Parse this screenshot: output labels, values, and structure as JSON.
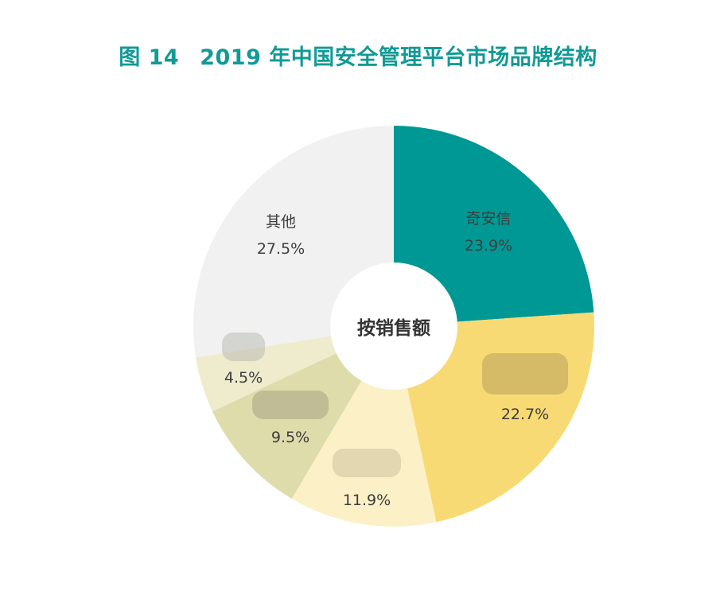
{
  "title": {
    "figure_number": "图 14",
    "text": "2019 年中国安全管理平台市场品牌结构"
  },
  "center_label": "按销售额",
  "colors": {
    "title": "#119a96",
    "text": "#3d3d3d",
    "background": "#ffffff"
  },
  "chart_data": {
    "type": "pie",
    "variant": "donut",
    "title": "图 14  2019 年中国安全管理平台市场品牌结构",
    "center_text": "按销售额",
    "start_angle_deg": 0,
    "direction": "clockwise",
    "slices": [
      {
        "label": "奇安信",
        "value": 23.9,
        "display": "23.9%",
        "color": "#009894",
        "label_obscured": false
      },
      {
        "label": "",
        "value": 22.7,
        "display": "22.7%",
        "color": "#f8da74",
        "label_obscured": true
      },
      {
        "label": "",
        "value": 11.9,
        "display": "11.9%",
        "color": "#fbf0c6",
        "label_obscured": true
      },
      {
        "label": "",
        "value": 9.5,
        "display": "9.5%",
        "color": "#dedcab",
        "label_obscured": true
      },
      {
        "label": "",
        "value": 4.5,
        "display": "4.5%",
        "color": "#eeeccd",
        "label_obscured": true
      },
      {
        "label": "其他",
        "value": 27.5,
        "display": "27.5%",
        "color": "#f1f1f1",
        "label_obscured": false
      }
    ],
    "legend": "none",
    "notes": "Labels of four slices are pixelated/obscured in the source image."
  }
}
